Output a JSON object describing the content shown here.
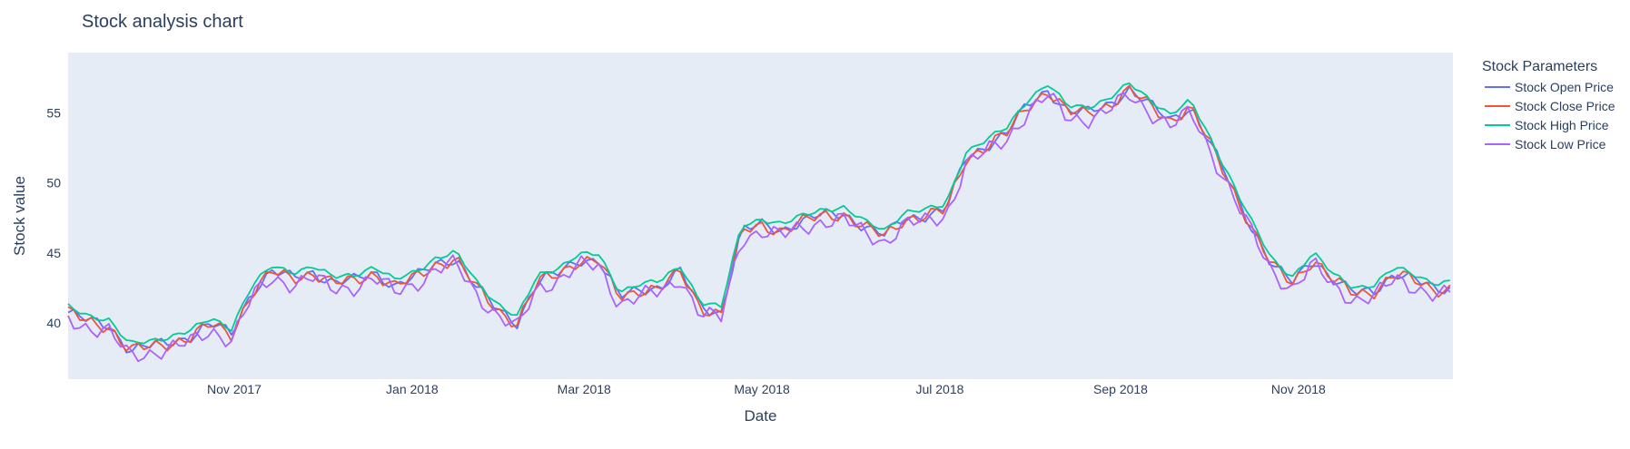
{
  "chart_data": {
    "type": "line",
    "title": "Stock analysis chart",
    "xlabel": "Date",
    "ylabel": "Stock value",
    "x_tick_labels": [
      "Nov 2017",
      "Jan 2018",
      "Mar 2018",
      "May 2018",
      "Jul 2018",
      "Sep 2018",
      "Nov 2018"
    ],
    "x_tick_dates": [
      "2017-11-01",
      "2018-01-01",
      "2018-03-01",
      "2018-05-01",
      "2018-07-01",
      "2018-09-01",
      "2018-11-01"
    ],
    "xlim": [
      "2017-09-05",
      "2018-12-24"
    ],
    "y_ticks": [
      40,
      45,
      50,
      55
    ],
    "ylim": [
      36,
      59.3
    ],
    "legend": {
      "title": "Stock Parameters",
      "placement": "top-right, outside plot"
    },
    "grid": false,
    "plot_background": "#e5ecf6",
    "series": [
      {
        "name": "Stock Open Price",
        "color": "#636efa",
        "offset": 0.05,
        "amp": 0.3
      },
      {
        "name": "Stock Close Price",
        "color": "#ef553b",
        "offset": 0.0,
        "amp": 0.35
      },
      {
        "name": "Stock High Price",
        "color": "#00cc96",
        "offset": 0.45,
        "amp": 0.15
      },
      {
        "name": "Stock Low Price",
        "color": "#ab63fa",
        "offset": -0.4,
        "amp": 0.45
      }
    ],
    "base_series": {
      "dates": [
        "2017-09-05",
        "2017-09-12",
        "2017-09-19",
        "2017-09-26",
        "2017-10-03",
        "2017-10-10",
        "2017-10-17",
        "2017-10-24",
        "2017-10-31",
        "2017-11-07",
        "2017-11-14",
        "2017-11-21",
        "2017-11-28",
        "2017-12-05",
        "2017-12-12",
        "2017-12-19",
        "2017-12-26",
        "2018-01-02",
        "2018-01-09",
        "2018-01-16",
        "2018-01-23",
        "2018-01-30",
        "2018-02-06",
        "2018-02-13",
        "2018-02-20",
        "2018-02-27",
        "2018-03-06",
        "2018-03-13",
        "2018-03-20",
        "2018-03-27",
        "2018-04-03",
        "2018-04-10",
        "2018-04-17",
        "2018-04-24",
        "2018-05-01",
        "2018-05-08",
        "2018-05-15",
        "2018-05-22",
        "2018-05-29",
        "2018-06-05",
        "2018-06-12",
        "2018-06-19",
        "2018-06-26",
        "2018-07-03",
        "2018-07-10",
        "2018-07-17",
        "2018-07-24",
        "2018-07-31",
        "2018-08-07",
        "2018-08-14",
        "2018-08-21",
        "2018-08-28",
        "2018-09-04",
        "2018-09-11",
        "2018-09-18",
        "2018-09-25",
        "2018-10-02",
        "2018-10-09",
        "2018-10-16",
        "2018-10-23",
        "2018-10-30",
        "2018-11-06",
        "2018-11-13",
        "2018-11-20",
        "2018-11-27",
        "2018-12-04",
        "2018-12-11",
        "2018-12-18",
        "2018-12-24"
      ],
      "values": [
        40.7,
        40.1,
        39.8,
        38.0,
        38.3,
        38.6,
        39.0,
        39.9,
        39.2,
        42.2,
        43.6,
        43.2,
        43.6,
        42.8,
        43.0,
        43.6,
        42.6,
        43.2,
        44.2,
        44.6,
        42.5,
        41.0,
        40.0,
        42.9,
        43.5,
        44.5,
        44.4,
        41.8,
        42.4,
        42.5,
        43.6,
        41.1,
        40.7,
        46.5,
        47.0,
        46.6,
        47.2,
        47.7,
        47.8,
        46.8,
        46.2,
        47.5,
        47.6,
        48.0,
        51.8,
        52.6,
        53.5,
        55.5,
        56.6,
        55.0,
        55.0,
        55.6,
        56.6,
        55.5,
        54.5,
        55.4,
        52.6,
        49.8,
        46.8,
        44.0,
        42.9,
        44.6,
        43.0,
        42.1,
        42.3,
        43.5,
        43.0,
        42.4,
        42.5
      ]
    }
  }
}
